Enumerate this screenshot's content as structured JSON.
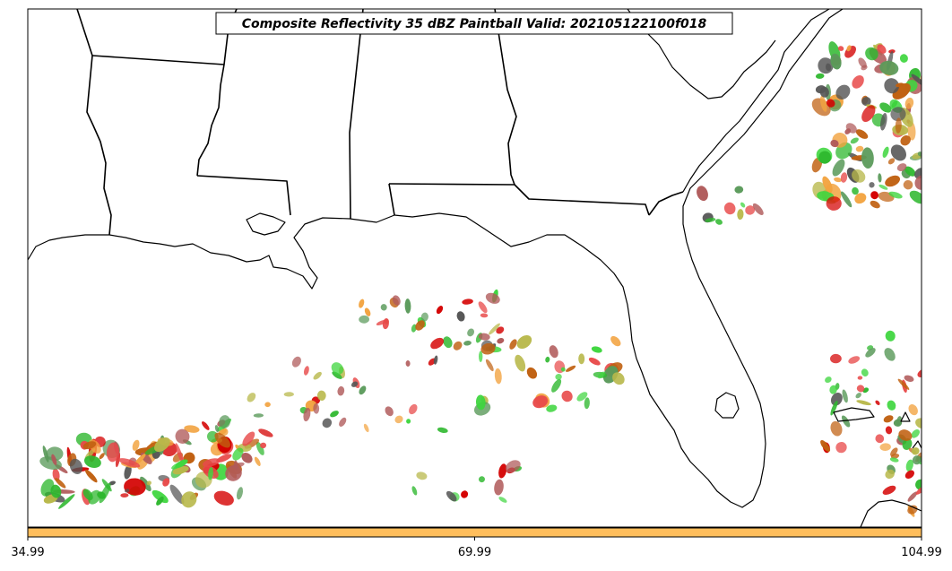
{
  "title": "Composite Reflectivity 35 dBZ Paintball Valid: 202105122100f018",
  "colorbar": {
    "color": "#ffbe5c",
    "tick_labels": [
      "34.99",
      "69.99",
      "104.99"
    ]
  },
  "map_colors": {
    "land": "#ffffff",
    "border": "#000000"
  },
  "paintball_colors": [
    "#b05a5a",
    "#f2a340",
    "#3fd63f",
    "#e84a4a",
    "#5a9a5a",
    "#b8b84a",
    "#555555",
    "#d40000",
    "#2fb82f",
    "#c06010"
  ]
}
